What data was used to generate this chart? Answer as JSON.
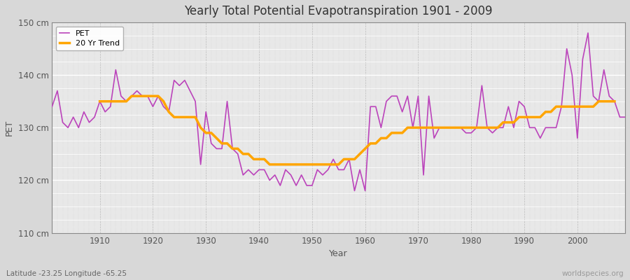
{
  "title": "Yearly Total Potential Evapotranspiration 1901 - 2009",
  "xlabel": "Year",
  "ylabel": "PET",
  "subtitle": "Latitude -23.25 Longitude -65.25",
  "watermark": "worldspecies.org",
  "ylim": [
    110,
    150
  ],
  "xlim": [
    1901,
    2009
  ],
  "yticks": [
    110,
    120,
    130,
    140,
    150
  ],
  "ytick_labels": [
    "110 cm",
    "120 cm",
    "130 cm",
    "140 cm",
    "150 cm"
  ],
  "xticks": [
    1910,
    1920,
    1930,
    1940,
    1950,
    1960,
    1970,
    1980,
    1990,
    2000
  ],
  "pet_color": "#BB44BB",
  "trend_color": "#FFA500",
  "fig_bg_color": "#D8D8D8",
  "plot_bg_color": "#E8E8E8",
  "legend_labels": [
    "PET",
    "20 Yr Trend"
  ],
  "years": [
    1901,
    1902,
    1903,
    1904,
    1905,
    1906,
    1907,
    1908,
    1909,
    1910,
    1911,
    1912,
    1913,
    1914,
    1915,
    1916,
    1917,
    1918,
    1919,
    1920,
    1921,
    1922,
    1923,
    1924,
    1925,
    1926,
    1927,
    1928,
    1929,
    1930,
    1931,
    1932,
    1933,
    1934,
    1935,
    1936,
    1937,
    1938,
    1939,
    1940,
    1941,
    1942,
    1943,
    1944,
    1945,
    1946,
    1947,
    1948,
    1949,
    1950,
    1951,
    1952,
    1953,
    1954,
    1955,
    1956,
    1957,
    1958,
    1959,
    1960,
    1961,
    1962,
    1963,
    1964,
    1965,
    1966,
    1967,
    1968,
    1969,
    1970,
    1971,
    1972,
    1973,
    1974,
    1975,
    1976,
    1977,
    1978,
    1979,
    1980,
    1981,
    1982,
    1983,
    1984,
    1985,
    1986,
    1987,
    1988,
    1989,
    1990,
    1991,
    1992,
    1993,
    1994,
    1995,
    1996,
    1997,
    1998,
    1999,
    2000,
    2001,
    2002,
    2003,
    2004,
    2005,
    2006,
    2007,
    2008,
    2009
  ],
  "pet": [
    134,
    137,
    131,
    130,
    132,
    130,
    133,
    131,
    132,
    135,
    133,
    134,
    141,
    136,
    135,
    136,
    137,
    136,
    136,
    134,
    136,
    134,
    133,
    139,
    138,
    139,
    137,
    135,
    123,
    133,
    127,
    126,
    126,
    135,
    126,
    125,
    121,
    122,
    121,
    122,
    122,
    120,
    121,
    119,
    122,
    121,
    119,
    121,
    119,
    119,
    122,
    121,
    122,
    124,
    122,
    122,
    124,
    118,
    122,
    118,
    134,
    134,
    130,
    135,
    136,
    136,
    133,
    136,
    130,
    136,
    121,
    136,
    128,
    130,
    130,
    130,
    130,
    130,
    129,
    129,
    130,
    138,
    130,
    129,
    130,
    130,
    134,
    130,
    135,
    134,
    130,
    130,
    128,
    130,
    130,
    130,
    134,
    145,
    140,
    128,
    143,
    148,
    136,
    135,
    141,
    136,
    135,
    132,
    132
  ],
  "trend": [
    null,
    null,
    null,
    null,
    null,
    null,
    null,
    null,
    null,
    135,
    135,
    135,
    135,
    135,
    135,
    136,
    136,
    136,
    136,
    136,
    136,
    135,
    133,
    132,
    132,
    132,
    132,
    132,
    130,
    129,
    129,
    128,
    127,
    127,
    126,
    126,
    125,
    125,
    124,
    124,
    124,
    123,
    123,
    123,
    123,
    123,
    123,
    123,
    123,
    123,
    123,
    123,
    123,
    123,
    123,
    124,
    124,
    124,
    125,
    126,
    127,
    127,
    128,
    128,
    129,
    129,
    129,
    130,
    130,
    130,
    130,
    130,
    130,
    130,
    130,
    130,
    130,
    130,
    130,
    130,
    130,
    130,
    130,
    130,
    130,
    131,
    131,
    131,
    132,
    132,
    132,
    132,
    132,
    133,
    133,
    134,
    134,
    134,
    134,
    134,
    134,
    134,
    134,
    135,
    135,
    135,
    135,
    null,
    null
  ]
}
